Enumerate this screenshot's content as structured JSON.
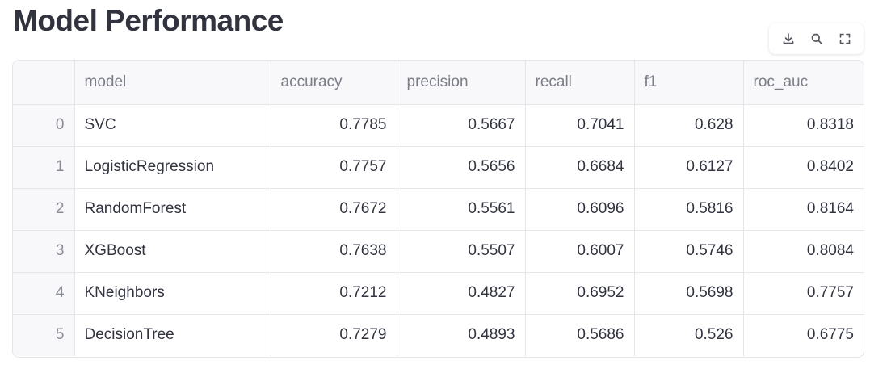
{
  "page": {
    "title": "Model Performance"
  },
  "toolbar": {
    "buttons": [
      {
        "icon": "download-icon",
        "name": "download-button"
      },
      {
        "icon": "search-icon",
        "name": "search-button"
      },
      {
        "icon": "fullscreen-icon",
        "name": "fullscreen-button"
      }
    ]
  },
  "table": {
    "columns": [
      "",
      "model",
      "accuracy",
      "precision",
      "recall",
      "f1",
      "roc_auc"
    ],
    "rows": [
      [
        "0",
        "SVC",
        "0.7785",
        "0.5667",
        "0.7041",
        "0.628",
        "0.8318"
      ],
      [
        "1",
        "LogisticRegression",
        "0.7757",
        "0.5656",
        "0.6684",
        "0.6127",
        "0.8402"
      ],
      [
        "2",
        "RandomForest",
        "0.7672",
        "0.5561",
        "0.6096",
        "0.5816",
        "0.8164"
      ],
      [
        "3",
        "XGBoost",
        "0.7638",
        "0.5507",
        "0.6007",
        "0.5746",
        "0.8084"
      ],
      [
        "4",
        "KNeighbors",
        "0.7212",
        "0.4827",
        "0.6952",
        "0.5698",
        "0.7757"
      ],
      [
        "5",
        "DecisionTree",
        "0.7279",
        "0.4893",
        "0.5686",
        "0.526",
        "0.6775"
      ]
    ]
  }
}
